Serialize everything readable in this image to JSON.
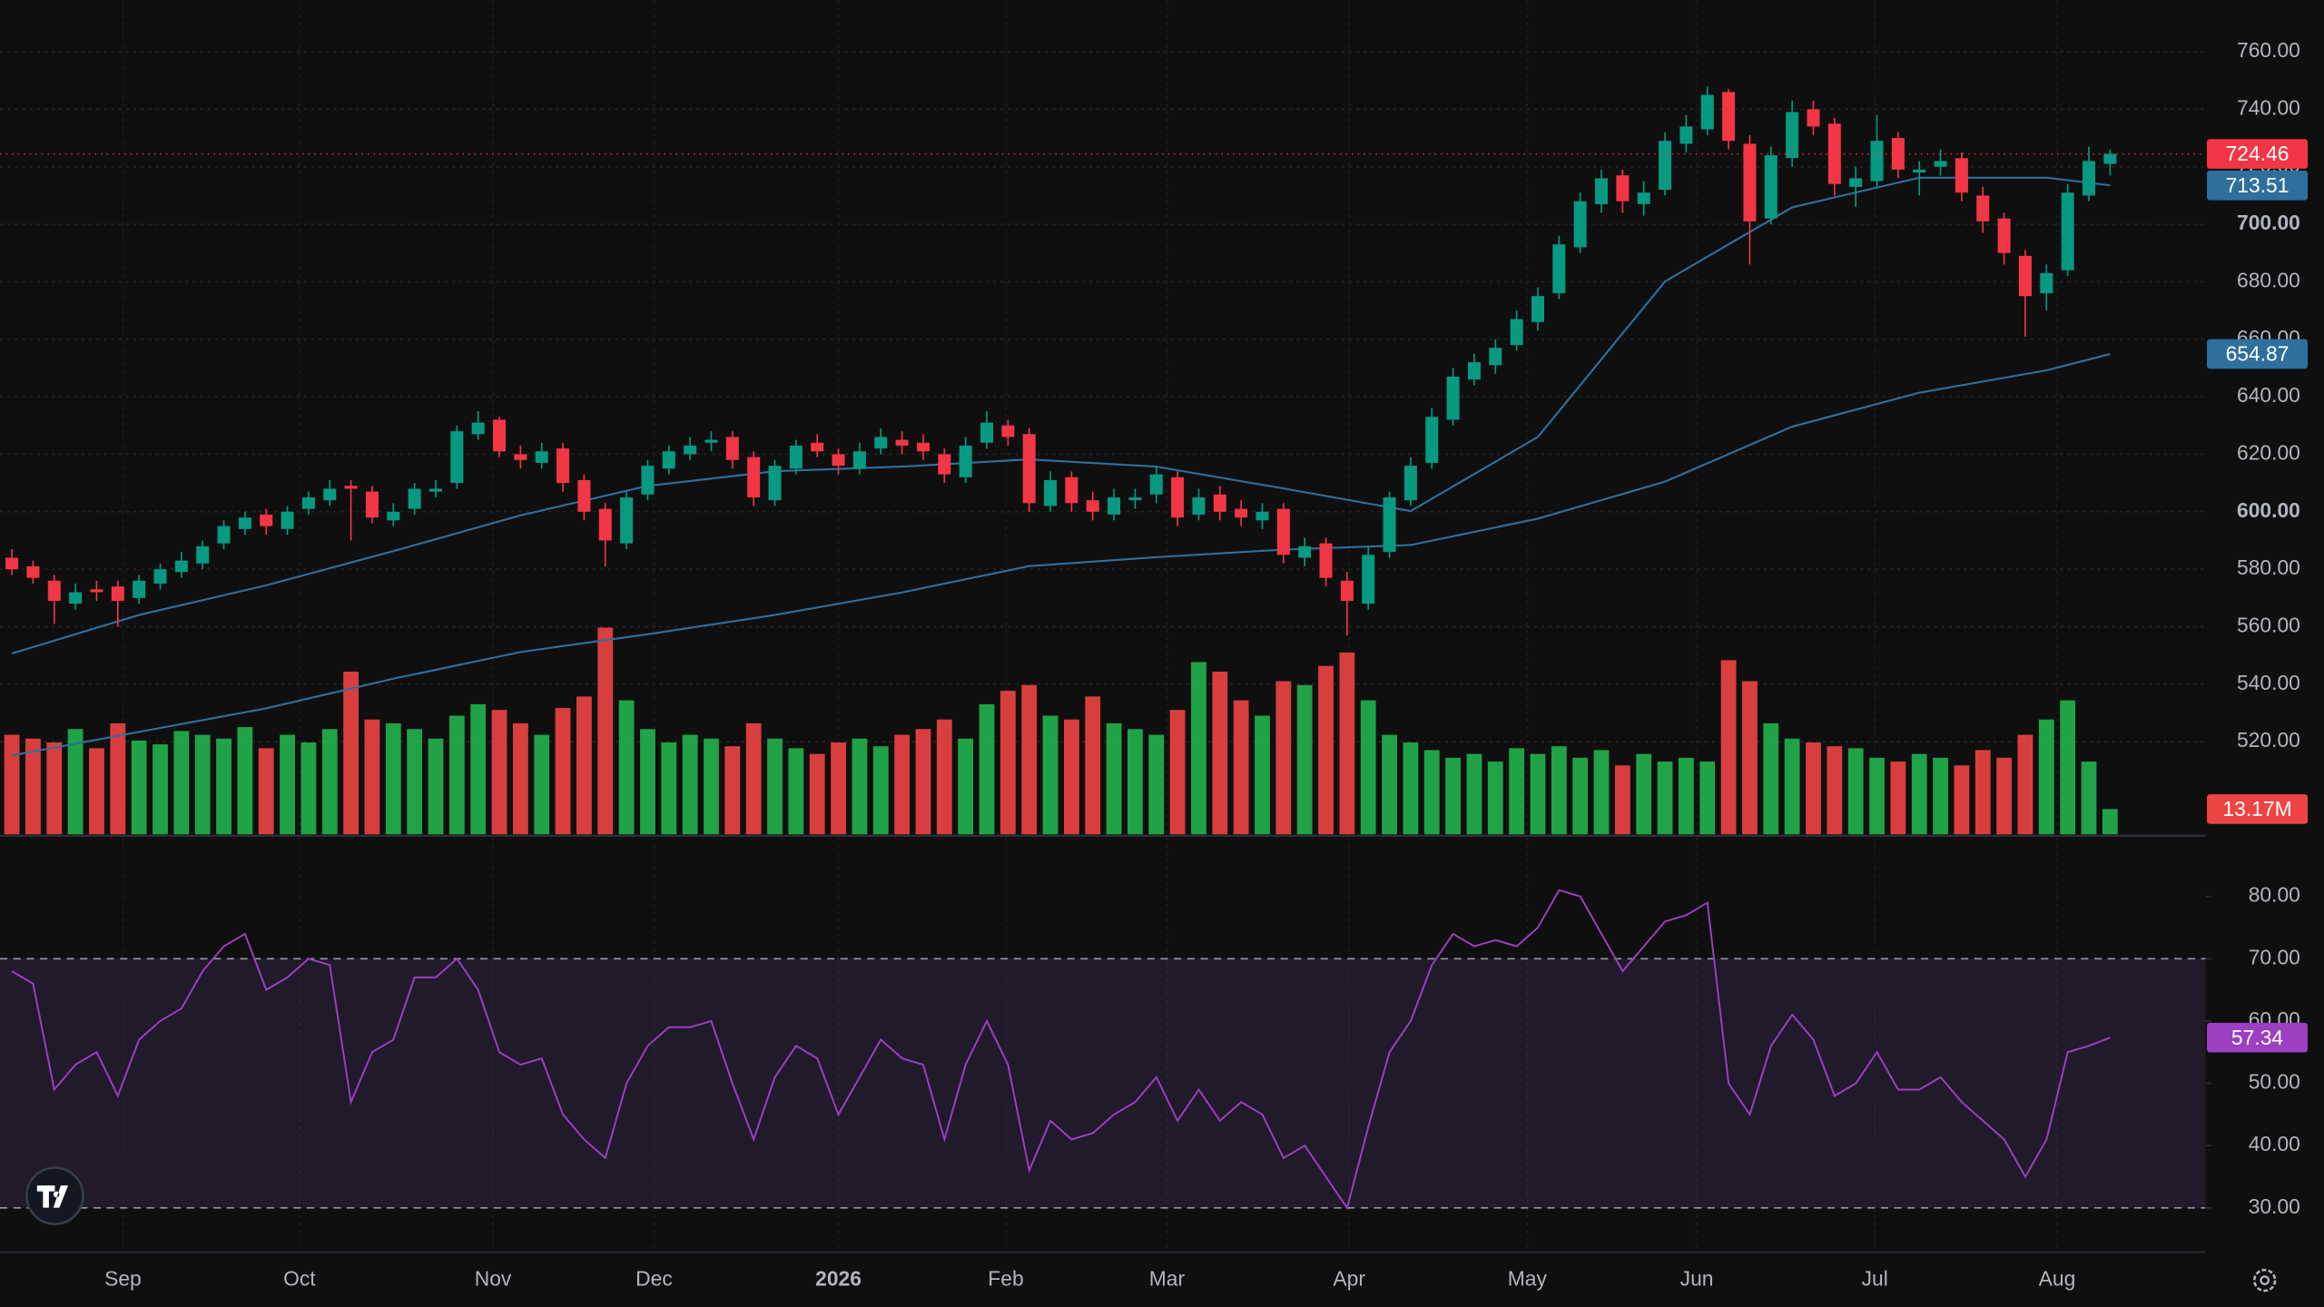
{
  "chart_data": [
    {
      "type": "candlestick",
      "xlim": [
        -0.56,
        103.5
      ],
      "xticks": [
        {
          "value": 5.24,
          "label": "Sep"
        },
        {
          "value": 13.57,
          "label": "Oct"
        },
        {
          "value": 22.7,
          "label": "Nov"
        },
        {
          "value": 30.3,
          "label": "Dec"
        },
        {
          "value": 39.0,
          "label": "2026"
        },
        {
          "value": 46.9,
          "label": "Feb"
        },
        {
          "value": 54.5,
          "label": "Mar"
        },
        {
          "value": 63.1,
          "label": "Apr"
        },
        {
          "value": 71.5,
          "label": "May"
        },
        {
          "value": 79.5,
          "label": "Jun"
        },
        {
          "value": 87.9,
          "label": "Jul"
        },
        {
          "value": 96.5,
          "label": "Aug"
        }
      ],
      "ylim": [
        487.8,
        778
      ],
      "yticks": [
        {
          "value": 520,
          "label": "520.00"
        },
        {
          "value": 540,
          "label": "540.00"
        },
        {
          "value": 560,
          "label": "560.00"
        },
        {
          "value": 580,
          "label": "580.00"
        },
        {
          "value": 600,
          "label": "600.00"
        },
        {
          "value": 620,
          "label": "620.00"
        },
        {
          "value": 640,
          "label": "640.00"
        },
        {
          "value": 660,
          "label": "660.00"
        },
        {
          "value": 680,
          "label": "680.00"
        },
        {
          "value": 700,
          "label": "700.00"
        },
        {
          "value": 720,
          "label": "720.00"
        },
        {
          "value": 740,
          "label": "740.00"
        },
        {
          "value": 760,
          "label": "760.00"
        }
      ],
      "grid": true,
      "up_color": "#089981",
      "down_color": "#f23645",
      "open": [
        584,
        581,
        576,
        568,
        573,
        574,
        570,
        575,
        579,
        582,
        589,
        594,
        599,
        594,
        601,
        604,
        609,
        607,
        597,
        601,
        607,
        610,
        627,
        632,
        620,
        617,
        622,
        611,
        601,
        589,
        606,
        615,
        620,
        624,
        626,
        619,
        604,
        615,
        624,
        620,
        615,
        622,
        625,
        624,
        620,
        612,
        624,
        630,
        627,
        602,
        612,
        604,
        599,
        604,
        606,
        612,
        599,
        606,
        601,
        597,
        601,
        584,
        589,
        576,
        568,
        586,
        604,
        617,
        632,
        646,
        651,
        658,
        666,
        676,
        692,
        707,
        717,
        707,
        712,
        728,
        733,
        746,
        728,
        702,
        723,
        740,
        735,
        713,
        715,
        730,
        718,
        720,
        723,
        710,
        702,
        689,
        676,
        684,
        710,
        721
      ],
      "high": [
        587,
        583,
        578,
        575,
        576,
        576,
        578,
        582,
        586,
        590,
        597,
        600,
        601,
        602,
        607,
        611,
        611,
        609,
        603,
        610,
        611,
        630,
        635,
        633,
        623,
        624,
        624,
        613,
        603,
        607,
        618,
        623,
        626,
        628,
        628,
        621,
        618,
        625,
        627,
        622,
        624,
        629,
        628,
        627,
        622,
        626,
        635,
        632,
        629,
        614,
        614,
        607,
        608,
        608,
        616,
        614,
        608,
        609,
        604,
        603,
        603,
        591,
        591,
        579,
        588,
        607,
        619,
        636,
        650,
        655,
        660,
        670,
        678,
        696,
        711,
        719,
        719,
        715,
        732,
        738,
        748,
        747,
        731,
        727,
        743,
        743,
        737,
        720,
        738,
        732,
        722,
        726,
        725,
        713,
        704,
        691,
        686,
        714,
        727,
        726
      ],
      "low": [
        578,
        575,
        561,
        566,
        569,
        560,
        568,
        573,
        577,
        580,
        587,
        592,
        592,
        592,
        599,
        602,
        590,
        596,
        595,
        599,
        605,
        608,
        625,
        619,
        615,
        615,
        607,
        597,
        581,
        587,
        604,
        613,
        618,
        621,
        615,
        602,
        602,
        613,
        619,
        613,
        613,
        620,
        620,
        618,
        610,
        610,
        622,
        623,
        600,
        600,
        600,
        597,
        597,
        601,
        603,
        595,
        597,
        597,
        595,
        594,
        582,
        581,
        574,
        557,
        566,
        584,
        602,
        615,
        630,
        644,
        648,
        656,
        663,
        674,
        690,
        704,
        704,
        703,
        710,
        725,
        731,
        726,
        686,
        700,
        720,
        731,
        710,
        706,
        713,
        716,
        710,
        717,
        708,
        697,
        686,
        661,
        670,
        682,
        708,
        717
      ],
      "close": [
        580,
        577,
        569,
        572,
        572,
        569,
        576,
        580,
        583,
        588,
        595,
        598,
        595,
        600,
        605,
        608,
        608,
        598,
        600,
        608,
        608,
        628,
        631,
        621,
        618,
        621,
        610,
        600,
        590,
        605,
        616,
        621,
        623,
        625,
        618,
        605,
        616,
        623,
        621,
        616,
        621,
        626,
        623,
        621,
        613,
        623,
        631,
        626,
        603,
        611,
        603,
        600,
        605,
        605,
        613,
        598,
        605,
        600,
        598,
        600,
        585,
        588,
        577,
        569,
        585,
        605,
        616,
        633,
        647,
        652,
        657,
        667,
        675,
        693,
        708,
        716,
        708,
        711,
        729,
        734,
        745,
        729,
        701,
        724,
        739,
        734,
        714,
        716,
        729,
        719,
        719,
        722,
        711,
        701,
        690,
        675,
        683,
        711,
        722,
        724.46
      ],
      "series": [
        {
          "color": "#2f6f9e",
          "x": [
            0,
            6,
            12,
            18,
            24,
            30,
            36,
            42,
            48,
            54,
            60,
            66,
            72,
            78,
            84,
            90,
            96,
            99
          ],
          "values": [
            550.7,
            564.1,
            574.4,
            586.3,
            598.7,
            609.0,
            614.1,
            615.7,
            618.2,
            615.7,
            608.1,
            600.2,
            626.0,
            680.1,
            705.9,
            716.2,
            716.2,
            713.51
          ]
        },
        {
          "color": "#2f6f9e",
          "x": [
            0,
            6,
            12,
            18,
            24,
            30,
            36,
            42,
            48,
            54,
            60,
            66,
            72,
            78,
            84,
            90,
            96,
            99
          ],
          "values": [
            515.2,
            523.4,
            531.6,
            541.9,
            551.2,
            557.4,
            564.1,
            571.9,
            581.1,
            584.2,
            586.8,
            588.4,
            597.6,
            610.5,
            629.6,
            641.4,
            649.2,
            654.87
          ]
        }
      ],
      "volume": {
        "ylim": [
          0,
          436
        ],
        "up_color": "#22b24c",
        "down_color": "#ef4444",
        "values": [
          52,
          50,
          48,
          55,
          45,
          58,
          49,
          47,
          54,
          52,
          50,
          56,
          45,
          52,
          48,
          55,
          85,
          60,
          58,
          55,
          50,
          62,
          68,
          65,
          58,
          52,
          66,
          72,
          108,
          70,
          55,
          48,
          52,
          50,
          46,
          58,
          50,
          45,
          42,
          48,
          50,
          46,
          52,
          55,
          60,
          50,
          68,
          75,
          78,
          62,
          60,
          72,
          58,
          55,
          52,
          65,
          90,
          85,
          70,
          62,
          80,
          78,
          88,
          95,
          70,
          52,
          48,
          44,
          40,
          42,
          38,
          45,
          42,
          46,
          40,
          44,
          36,
          42,
          38,
          40,
          38,
          91,
          80,
          58,
          50,
          48,
          46,
          45,
          40,
          38,
          42,
          40,
          36,
          44,
          40,
          52,
          60,
          70,
          38,
          13.17
        ],
        "value_labels": {
          "99": "13.17M"
        }
      }
    },
    {
      "type": "line",
      "color": "#9c3fc0",
      "ylim": [
        22.9,
        89.5
      ],
      "yticks": [
        {
          "value": 30,
          "label": "30.00"
        },
        {
          "value": 40,
          "label": "40.00"
        },
        {
          "value": 50,
          "label": "50.00"
        },
        {
          "value": 60,
          "label": "60.00"
        },
        {
          "value": 70,
          "label": "70.00"
        },
        {
          "value": 80,
          "label": "80.00"
        }
      ],
      "band": [
        30,
        70
      ],
      "values": [
        68,
        66,
        49,
        53,
        55,
        48,
        57,
        60,
        62,
        68,
        72,
        74,
        65,
        67,
        70,
        69,
        47,
        55,
        57,
        67,
        67,
        70,
        65,
        55,
        53,
        54,
        45,
        41,
        38,
        50,
        56,
        59,
        59,
        60,
        50,
        41,
        51,
        56,
        54,
        45,
        51,
        57,
        54,
        53,
        41,
        53,
        60,
        53,
        36,
        44,
        41,
        42,
        45,
        47,
        51,
        44,
        49,
        44,
        47,
        45,
        38,
        40,
        35,
        30,
        43,
        55,
        60,
        69,
        74,
        72,
        73,
        72,
        75,
        81,
        80,
        74,
        68,
        72,
        76,
        77,
        79,
        50,
        45,
        56,
        61,
        57,
        48,
        50,
        55,
        49,
        49,
        51,
        47,
        44,
        41,
        35,
        41,
        55,
        56,
        57.34
      ]
    }
  ]
}
